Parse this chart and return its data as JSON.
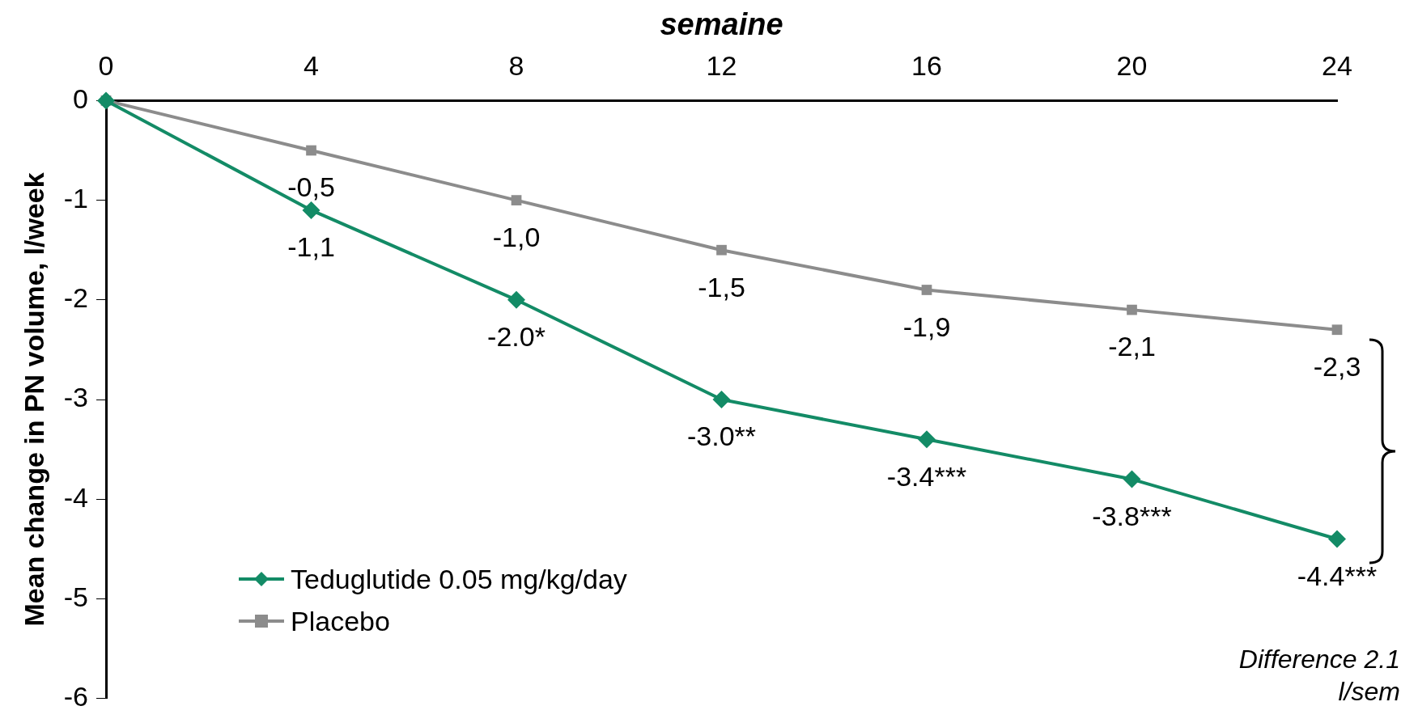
{
  "chart_data": {
    "type": "line",
    "xlabel": "semaine",
    "ylabel": "Mean change in PN volume, l/week",
    "x": [
      0,
      4,
      8,
      12,
      16,
      20,
      24
    ],
    "xlim": [
      0,
      24
    ],
    "xticks": [
      0,
      4,
      8,
      12,
      16,
      20,
      24
    ],
    "ylim": [
      -6,
      0
    ],
    "yticks": [
      -6,
      -5,
      -4,
      -3,
      -2,
      -1,
      0
    ],
    "series": [
      {
        "name": "Teduglutide 0.05 mg/kg/day",
        "color": "#138b66",
        "marker": "diamond",
        "values": [
          0,
          -1.1,
          -2.0,
          -3.0,
          -3.4,
          -3.8,
          -4.4
        ],
        "value_labels": [
          null,
          "-1,1",
          "-2.0*",
          "-3.0**",
          "-3.4***",
          "-3.8***",
          "-4.4***"
        ]
      },
      {
        "name": "Placebo",
        "color": "#8c8c8c",
        "marker": "square",
        "values": [
          0,
          -0.5,
          -1.0,
          -1.5,
          -1.9,
          -2.1,
          -2.3
        ],
        "value_labels": [
          null,
          "-0,5",
          "-1,0",
          "-1,5",
          "-1,9",
          "-2,1",
          "-2,3"
        ]
      }
    ],
    "annotations": [
      "Difference 2.1 l/sem"
    ],
    "grid": false,
    "legend": "bottom left",
    "line_style": "solid"
  }
}
